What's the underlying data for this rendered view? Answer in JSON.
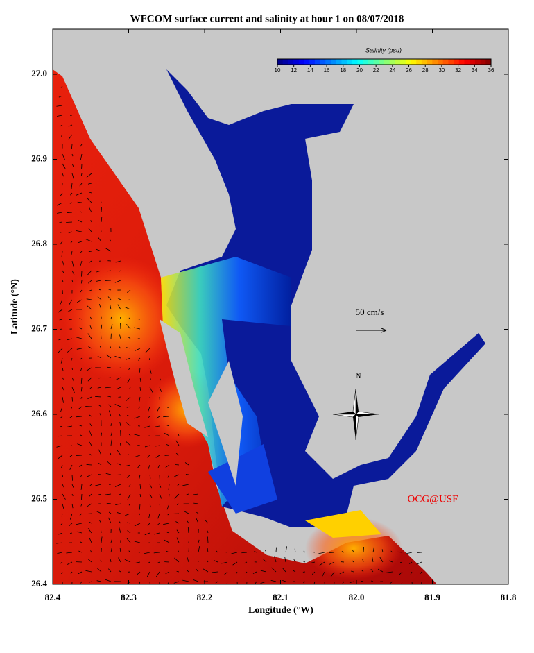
{
  "map": {
    "title": "WFCOM surface current and salinity at hour 1 on 08/07/2018",
    "x_label": "Longitude (°W)",
    "y_label": "Latitude (°N)",
    "xlim": [
      82.4,
      81.8
    ],
    "ylim": [
      26.4,
      27.05
    ],
    "xticks": [
      82.4,
      82.3,
      82.2,
      82.1,
      {
        "value": 82,
        "label": "82.0"
      },
      81.9,
      81.8
    ],
    "yticks": [
      26.4,
      26.5,
      26.6,
      26.7,
      26.8,
      26.9,
      {
        "value": 27,
        "label": "27.0"
      }
    ],
    "colorbar": {
      "title": "Salinity (psu)",
      "range": [
        10,
        36
      ],
      "ticks": [
        10,
        12,
        14,
        16,
        18,
        20,
        22,
        24,
        26,
        28,
        30,
        32,
        34,
        36
      ]
    },
    "scale_label": "50 cm/s",
    "compass_label": "N",
    "credit": "OCG@USF"
  }
}
